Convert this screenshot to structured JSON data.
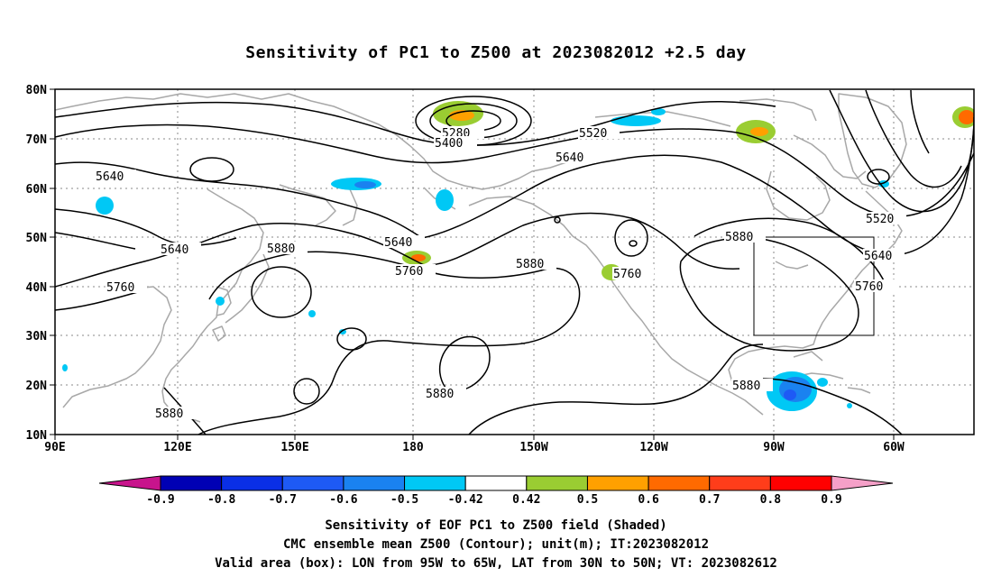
{
  "title": "Sensitivity of PC1 to Z500 at 2023082012 +2.5 day",
  "map": {
    "lat_labels": [
      "80N",
      "70N",
      "60N",
      "50N",
      "40N",
      "30N",
      "20N",
      "10N"
    ],
    "lon_labels": [
      "90E",
      "120E",
      "150E",
      "180",
      "150W",
      "120W",
      "90W",
      "60W"
    ],
    "contour_labels": [
      "5280",
      "5400",
      "5520",
      "5640",
      "5640",
      "5640",
      "5880",
      "5640",
      "5760",
      "5760",
      "5880",
      "5760",
      "5880",
      "5520",
      "5640",
      "5760",
      "5880",
      "5880",
      "5880"
    ],
    "box": {
      "lon_west": "95W",
      "lon_east": "65W",
      "lat_south": "30N",
      "lat_north": "50N"
    }
  },
  "colorbar": {
    "labels": [
      "-0.9",
      "-0.8",
      "-0.7",
      "-0.6",
      "-0.5",
      "-0.42",
      "0.42",
      "0.5",
      "0.6",
      "0.7",
      "0.8",
      "0.9"
    ],
    "colors": [
      "#0000b4",
      "#0a2fe6",
      "#1e5af5",
      "#1a82f0",
      "#00c8f5",
      "#ffffff",
      "#9acd32",
      "#ffa000",
      "#ff6a00",
      "#ff3d1a",
      "#ff0000"
    ],
    "low_extend_color": "#c8148c",
    "high_extend_color": "#f5a0c8"
  },
  "captions": [
    "Sensitivity of EOF PC1 to Z500 field (Shaded)",
    "CMC ensemble mean Z500 (Contour); unit(m); IT:2023082012",
    "Valid area (box): LON from 95W to 65W, LAT from 30N to 50N; VT: 2023082612"
  ]
}
